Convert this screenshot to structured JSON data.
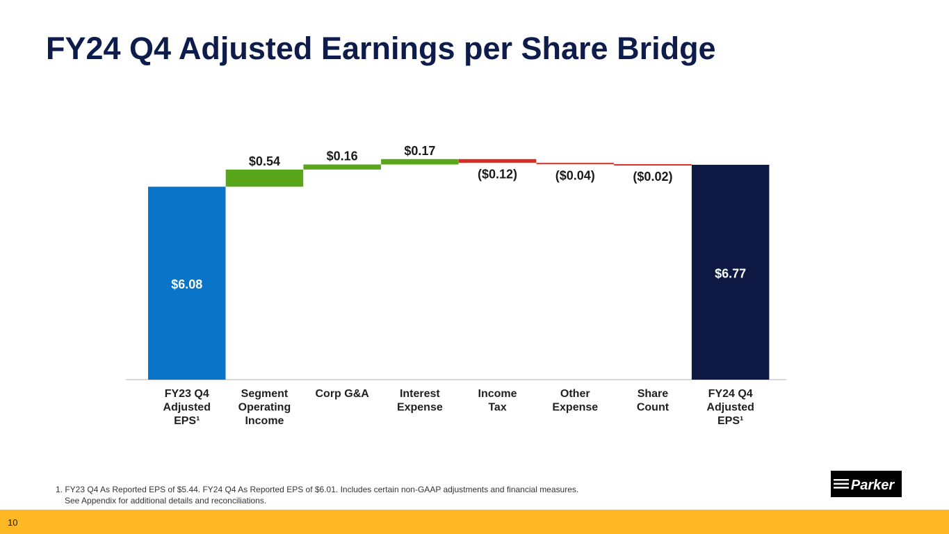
{
  "slide": {
    "title": "FY24 Q4 Adjusted Earnings per Share Bridge",
    "page_number": "10",
    "footnote_line1": "1. FY23 Q4 As Reported EPS of $5.44. FY24 Q4 As Reported EPS of $6.01. Includes certain non-GAAP adjustments and financial measures.",
    "footnote_line2": "See Appendix for additional details and reconciliations.",
    "logo_text": "Parker"
  },
  "colors": {
    "start_bar": "#0a74c9",
    "end_bar": "#0d1942",
    "increase": "#5aa61b",
    "decrease": "#d62e22",
    "title": "#0d1c4a",
    "footer_bar": "#fdb824",
    "axis": "#d9d9d9"
  },
  "chart_data": {
    "type": "waterfall",
    "title": "",
    "categories": [
      [
        "FY23 Q4",
        "Adjusted",
        "EPS¹"
      ],
      [
        "Segment",
        "Operating",
        "Income"
      ],
      [
        "Corp G&A"
      ],
      [
        "Interest",
        "Expense"
      ],
      [
        "Income",
        "Tax"
      ],
      [
        "Other",
        "Expense"
      ],
      [
        "Share",
        "Count"
      ],
      [
        "FY24 Q4",
        "Adjusted",
        "EPS¹"
      ]
    ],
    "values": [
      6.08,
      0.54,
      0.16,
      0.17,
      -0.12,
      -0.04,
      -0.02,
      6.77
    ],
    "kinds": [
      "total",
      "delta",
      "delta",
      "delta",
      "delta",
      "delta",
      "delta",
      "total"
    ],
    "labels": [
      "$6.08",
      "$0.54",
      "$0.16",
      "$0.17",
      "($0.12)",
      "($0.04)",
      "($0.02)",
      "$6.77"
    ],
    "ylim": [
      0,
      8.0
    ]
  }
}
